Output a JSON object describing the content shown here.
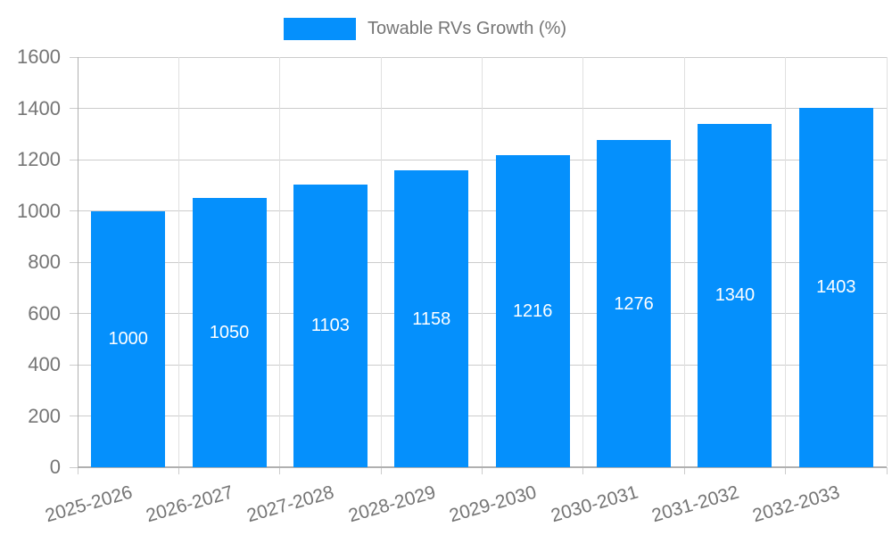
{
  "legend": {
    "label": "Towable RVs Growth (%)"
  },
  "chart_data": {
    "type": "bar",
    "title": "",
    "xlabel": "",
    "ylabel": "",
    "legend_position": "top",
    "legend_entries": [
      "Towable RVs Growth (%)"
    ],
    "categories": [
      "2025-2026",
      "2026-2027",
      "2027-2028",
      "2028-2029",
      "2029-2030",
      "2030-2031",
      "2031-2032",
      "2032-2033"
    ],
    "series": [
      {
        "name": "Towable RVs Growth (%)",
        "values": [
          1000,
          1050,
          1103,
          1158,
          1216,
          1276,
          1340,
          1403
        ]
      }
    ],
    "values": [
      1000,
      1050,
      1103,
      1158,
      1216,
      1276,
      1340,
      1403
    ],
    "yticks": [
      0,
      200,
      400,
      600,
      800,
      1000,
      1200,
      1400,
      1600
    ],
    "ylim": [
      0,
      1600
    ],
    "grid": true,
    "bar_labels_shown": true
  },
  "colors": {
    "bar": "#0590fc",
    "axis_text": "#757575",
    "grid_horizontal": "#cccccc",
    "grid_vertical": "#e0e0e0",
    "axis_line": "#b0b0b0",
    "value_label": "#ffffff",
    "background": "#ffffff"
  }
}
